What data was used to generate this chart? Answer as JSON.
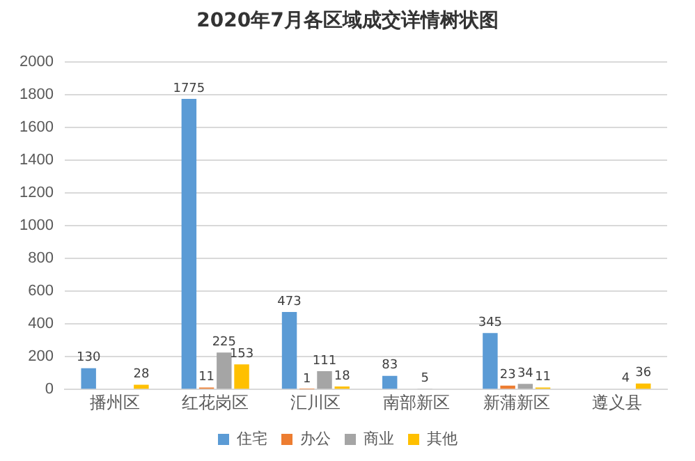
{
  "chart_data": {
    "type": "bar",
    "title": "2020年7月各区域成交详情树状图",
    "categories": [
      "播州区",
      "红花岗区",
      "汇川区",
      "南部新区",
      "新蒲新区",
      "遵义县"
    ],
    "series": [
      {
        "name": "住宅",
        "color": "#5b9bd5",
        "values": [
          130,
          1775,
          473,
          83,
          345,
          null
        ]
      },
      {
        "name": "办公",
        "color": "#ed7d31",
        "values": [
          null,
          11,
          1,
          null,
          23,
          null
        ]
      },
      {
        "name": "商业",
        "color": "#a5a5a5",
        "values": [
          null,
          225,
          111,
          5,
          34,
          4
        ]
      },
      {
        "name": "其他",
        "color": "#ffc000",
        "values": [
          28,
          153,
          18,
          null,
          11,
          36
        ]
      }
    ],
    "ylim": [
      0,
      2000
    ],
    "yticks": [
      0,
      200,
      400,
      600,
      800,
      1000,
      1200,
      1400,
      1600,
      1800,
      2000
    ],
    "grid": "y",
    "legend": "bottom",
    "data_labels": true
  }
}
